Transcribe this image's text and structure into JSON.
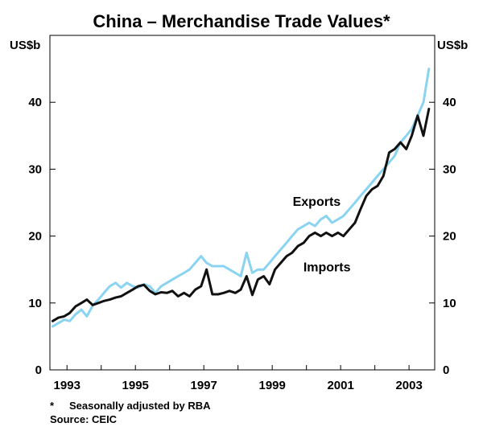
{
  "chart_data": {
    "type": "line",
    "title": "China – Merchandise Trade Values*",
    "ylabel_left": "US$b",
    "ylabel_right": "US$b",
    "ylim": [
      0,
      50
    ],
    "xlim": [
      1992.5,
      2003.75
    ],
    "yticks": [
      "0",
      "10",
      "20",
      "30",
      "40"
    ],
    "xticks": [
      "1993",
      "1995",
      "1997",
      "1999",
      "2001",
      "2003"
    ],
    "series": [
      {
        "name": "Exports",
        "color": "#8ad4f2",
        "x": [
          1992.58,
          1992.75,
          1992.92,
          1993.08,
          1993.25,
          1993.42,
          1993.58,
          1993.75,
          1993.92,
          1994.08,
          1994.25,
          1994.42,
          1994.58,
          1994.75,
          1994.92,
          1995.08,
          1995.25,
          1995.42,
          1995.58,
          1995.75,
          1995.92,
          1996.08,
          1996.25,
          1996.42,
          1996.58,
          1996.75,
          1996.92,
          1997.08,
          1997.25,
          1997.42,
          1997.58,
          1997.75,
          1997.92,
          1998.08,
          1998.25,
          1998.42,
          1998.58,
          1998.75,
          1998.92,
          1999.08,
          1999.25,
          1999.42,
          1999.58,
          1999.75,
          1999.92,
          2000.08,
          2000.25,
          2000.42,
          2000.58,
          2000.75,
          2000.92,
          2001.08,
          2001.25,
          2001.42,
          2001.58,
          2001.75,
          2001.92,
          2002.08,
          2002.25,
          2002.42,
          2002.58,
          2002.75,
          2002.92,
          2003.08,
          2003.25,
          2003.42,
          2003.58
        ],
        "values": [
          6.5,
          7.0,
          7.5,
          7.3,
          8.3,
          9.0,
          8.0,
          9.6,
          10.5,
          11.5,
          12.5,
          13.0,
          12.3,
          13.0,
          12.5,
          12.3,
          12.8,
          12.5,
          11.5,
          12.5,
          13.0,
          13.5,
          14.0,
          14.5,
          15.0,
          16.0,
          17.0,
          16.0,
          15.5,
          15.5,
          15.5,
          15.0,
          14.5,
          14.0,
          17.5,
          14.5,
          15.0,
          15.0,
          16.0,
          17.0,
          18.0,
          19.0,
          20.0,
          21.0,
          21.5,
          22.0,
          21.5,
          22.5,
          23.0,
          22.0,
          22.5,
          23.0,
          24.0,
          25.0,
          26.0,
          27.0,
          28.0,
          29.0,
          30.0,
          31.0,
          32.0,
          34.0,
          35.0,
          36.0,
          38.0,
          40.0,
          45.0
        ]
      },
      {
        "name": "Imports",
        "color": "#111111",
        "x": [
          1992.58,
          1992.75,
          1992.92,
          1993.08,
          1993.25,
          1993.42,
          1993.58,
          1993.75,
          1993.92,
          1994.08,
          1994.25,
          1994.42,
          1994.58,
          1994.75,
          1994.92,
          1995.08,
          1995.25,
          1995.42,
          1995.58,
          1995.75,
          1995.92,
          1996.08,
          1996.25,
          1996.42,
          1996.58,
          1996.75,
          1996.92,
          1997.08,
          1997.25,
          1997.42,
          1997.58,
          1997.75,
          1997.92,
          1998.08,
          1998.25,
          1998.42,
          1998.58,
          1998.75,
          1998.92,
          1999.08,
          1999.25,
          1999.42,
          1999.58,
          1999.75,
          1999.92,
          2000.08,
          2000.25,
          2000.42,
          2000.58,
          2000.75,
          2000.92,
          2001.08,
          2001.25,
          2001.42,
          2001.58,
          2001.75,
          2001.92,
          2002.08,
          2002.25,
          2002.42,
          2002.58,
          2002.75,
          2002.92,
          2003.08,
          2003.25,
          2003.42,
          2003.58
        ],
        "values": [
          7.3,
          7.8,
          8.0,
          8.5,
          9.5,
          10.0,
          10.5,
          9.7,
          10.0,
          10.3,
          10.5,
          10.8,
          11.0,
          11.5,
          12.0,
          12.5,
          12.7,
          11.8,
          11.3,
          11.6,
          11.5,
          11.8,
          11.0,
          11.5,
          11.0,
          12.0,
          12.5,
          15.0,
          11.3,
          11.3,
          11.5,
          11.8,
          11.5,
          12.0,
          14.0,
          11.2,
          13.5,
          14.0,
          12.8,
          15.0,
          16.0,
          17.0,
          17.5,
          18.5,
          19.0,
          20.0,
          20.5,
          20.0,
          20.5,
          20.0,
          20.5,
          20.0,
          21.0,
          22.0,
          24.0,
          26.0,
          27.0,
          27.5,
          29.0,
          32.5,
          33.0,
          34.0,
          33.0,
          35.0,
          38.0,
          35.0,
          39.0
        ]
      }
    ],
    "annotations": [
      {
        "text": "Exports",
        "x": 2000.3,
        "y": 24.5
      },
      {
        "text": "Imports",
        "x": 2000.6,
        "y": 14.7
      }
    ]
  },
  "footnotes": {
    "asterisk": "*",
    "note": "Seasonally adjusted by RBA",
    "source": "Source: CEIC"
  }
}
